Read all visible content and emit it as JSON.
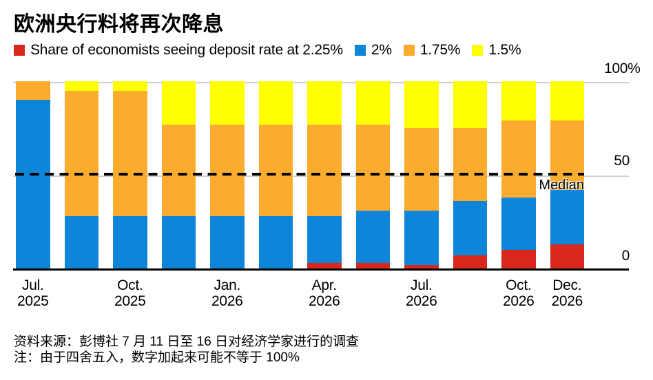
{
  "title": "欧洲央行料将再次降息",
  "legend": {
    "items": [
      {
        "label": "Share of economists seeing deposit rate at 2.25%",
        "color": "#d9271e"
      },
      {
        "label": "2%",
        "color": "#0d85d8"
      },
      {
        "label": "1.75%",
        "color": "#fbac2f"
      },
      {
        "label": "1.5%",
        "color": "#ffff00"
      }
    ]
  },
  "chart_data": {
    "type": "bar",
    "stacked": true,
    "title": "欧洲央行料将再次降息",
    "unit": "percent share of economists",
    "ylim": [
      0,
      100
    ],
    "grid": "horizontal",
    "legend_position": "top",
    "bar_count": 12,
    "yticks": [
      {
        "value": 100,
        "label": "100%"
      },
      {
        "value": 50,
        "label": "50"
      },
      {
        "value": 0,
        "label": "0"
      }
    ],
    "median_annotation": {
      "value": 50,
      "label": "Median",
      "style": "dashed-line"
    },
    "series": [
      {
        "name": "2.25%",
        "color": "#d9271e",
        "values": [
          0,
          0,
          0,
          0,
          0,
          0,
          3,
          3,
          2,
          7,
          10,
          13
        ]
      },
      {
        "name": "2%",
        "color": "#0d85d8",
        "values": [
          90,
          28,
          28,
          28,
          28,
          28,
          25,
          28,
          29,
          29,
          28,
          29
        ]
      },
      {
        "name": "1.75%",
        "color": "#fbac2f",
        "values": [
          10,
          67,
          67,
          49,
          49,
          49,
          49,
          46,
          44,
          39,
          41,
          37
        ]
      },
      {
        "name": "1.5%",
        "color": "#ffff00",
        "values": [
          0,
          5,
          5,
          23,
          23,
          23,
          23,
          23,
          25,
          25,
          21,
          21
        ]
      }
    ],
    "x_ticks": [
      {
        "bar_index": 0,
        "month": "Jul.",
        "year": "2025"
      },
      {
        "bar_index": 2,
        "month": "Oct.",
        "year": "2025"
      },
      {
        "bar_index": 4,
        "month": "Jan.",
        "year": "2026"
      },
      {
        "bar_index": 6,
        "month": "Apr.",
        "year": "2026"
      },
      {
        "bar_index": 8,
        "month": "Jul.",
        "year": "2026"
      },
      {
        "bar_index": 10,
        "month": "Oct.",
        "year": "2026"
      },
      {
        "bar_index": 11,
        "month": "Dec.",
        "year": "2026"
      }
    ]
  },
  "footer": {
    "source": "资料来源：彭博社 7 月 11 日至 16 日对经济学家进行的调查",
    "note": "注：由于四舍五入，数字加起来可能不等于 100%"
  }
}
